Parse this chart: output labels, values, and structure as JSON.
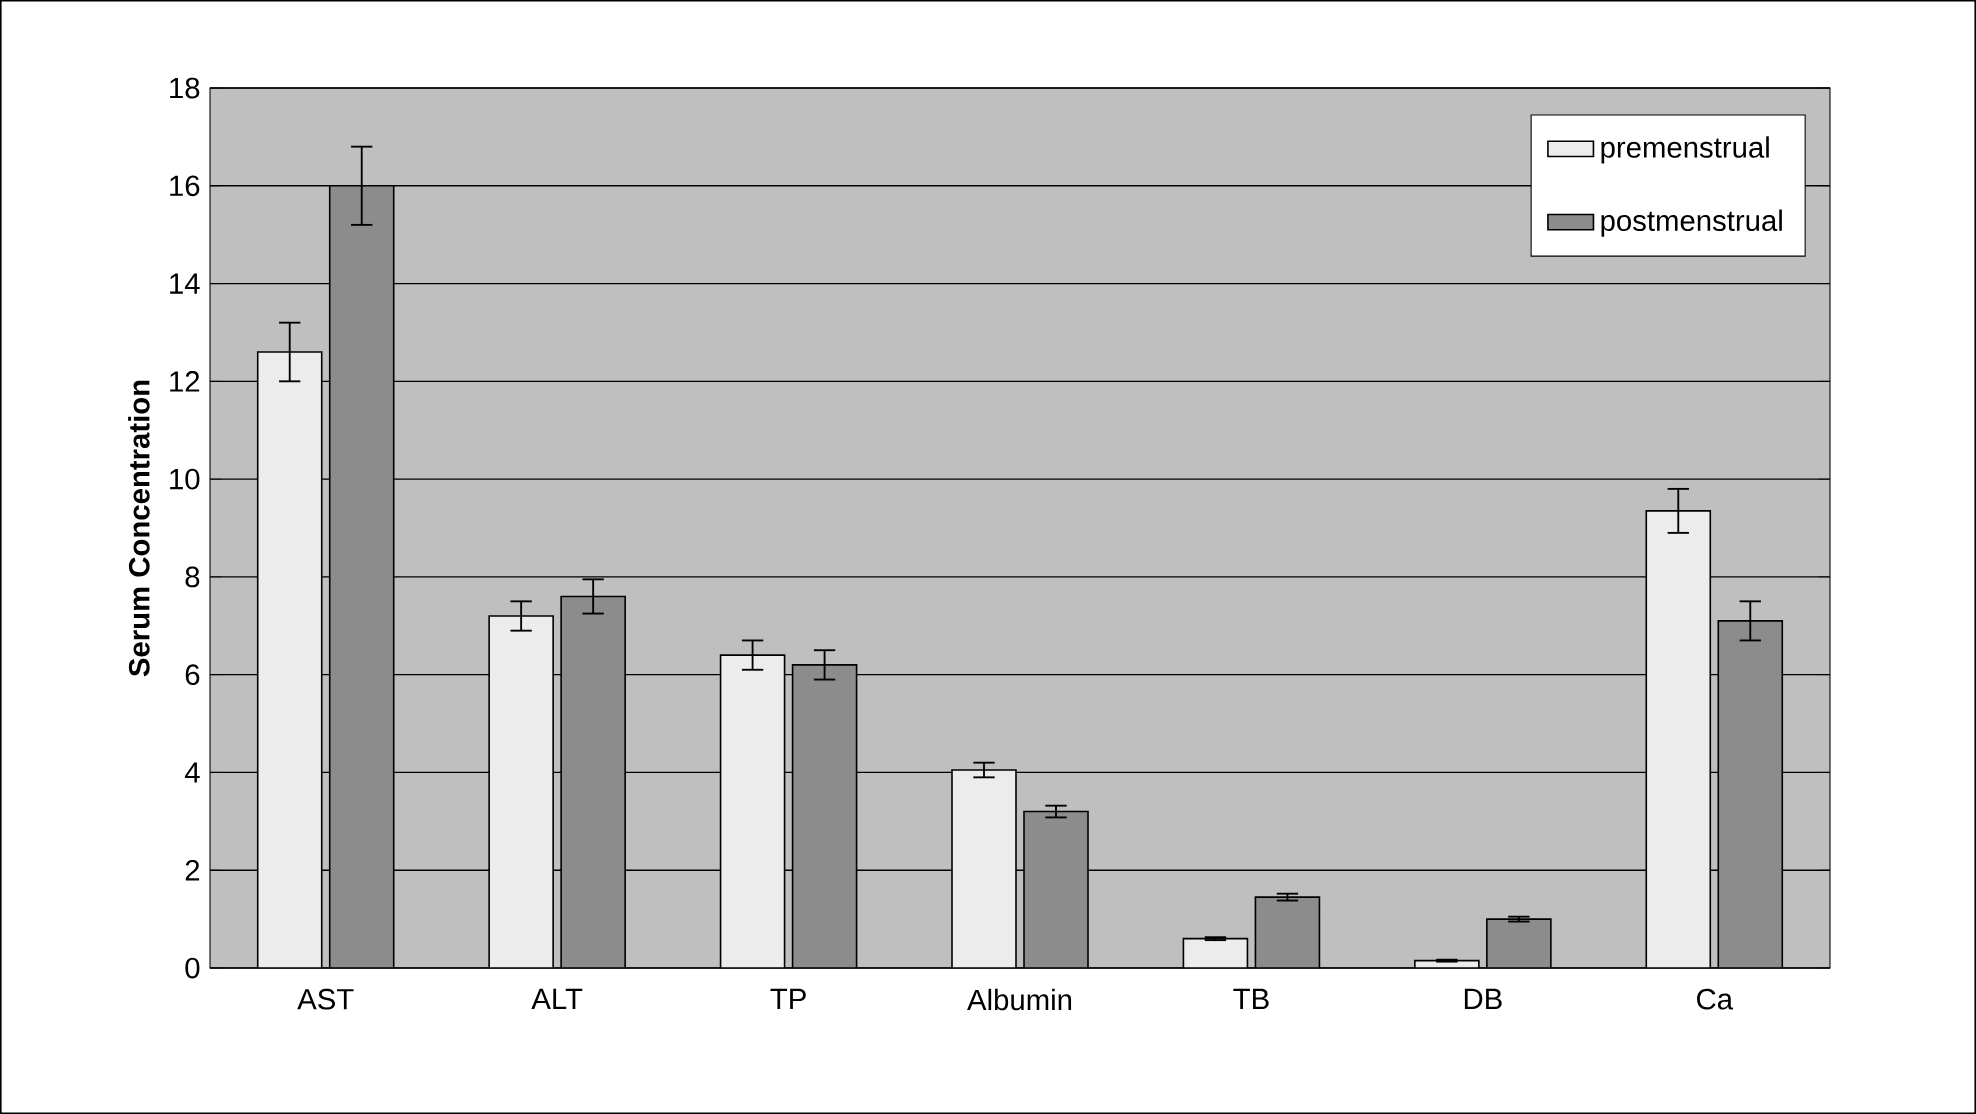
{
  "chart_data": {
    "type": "bar",
    "ylabel": "Serum Concentration",
    "categories": [
      "AST",
      "ALT",
      "TP",
      "Albumin",
      "TB",
      "DB",
      "Ca"
    ],
    "series": [
      {
        "name": "premenstrual",
        "color": "#ececec",
        "values": [
          12.6,
          7.2,
          6.4,
          4.05,
          0.6,
          0.15,
          9.35
        ],
        "errors": [
          0.6,
          0.3,
          0.3,
          0.15,
          0.03,
          0.02,
          0.45
        ]
      },
      {
        "name": "postmenstrual",
        "color": "#8c8c8c",
        "values": [
          16.0,
          7.6,
          6.2,
          3.2,
          1.45,
          1.0,
          7.1
        ],
        "errors": [
          0.8,
          0.35,
          0.3,
          0.12,
          0.07,
          0.05,
          0.4
        ]
      }
    ],
    "ylim": [
      0,
      18
    ],
    "yticks": [
      0,
      2,
      4,
      6,
      8,
      10,
      12,
      14,
      16,
      18
    ],
    "grid": "y",
    "legend": "top right"
  }
}
